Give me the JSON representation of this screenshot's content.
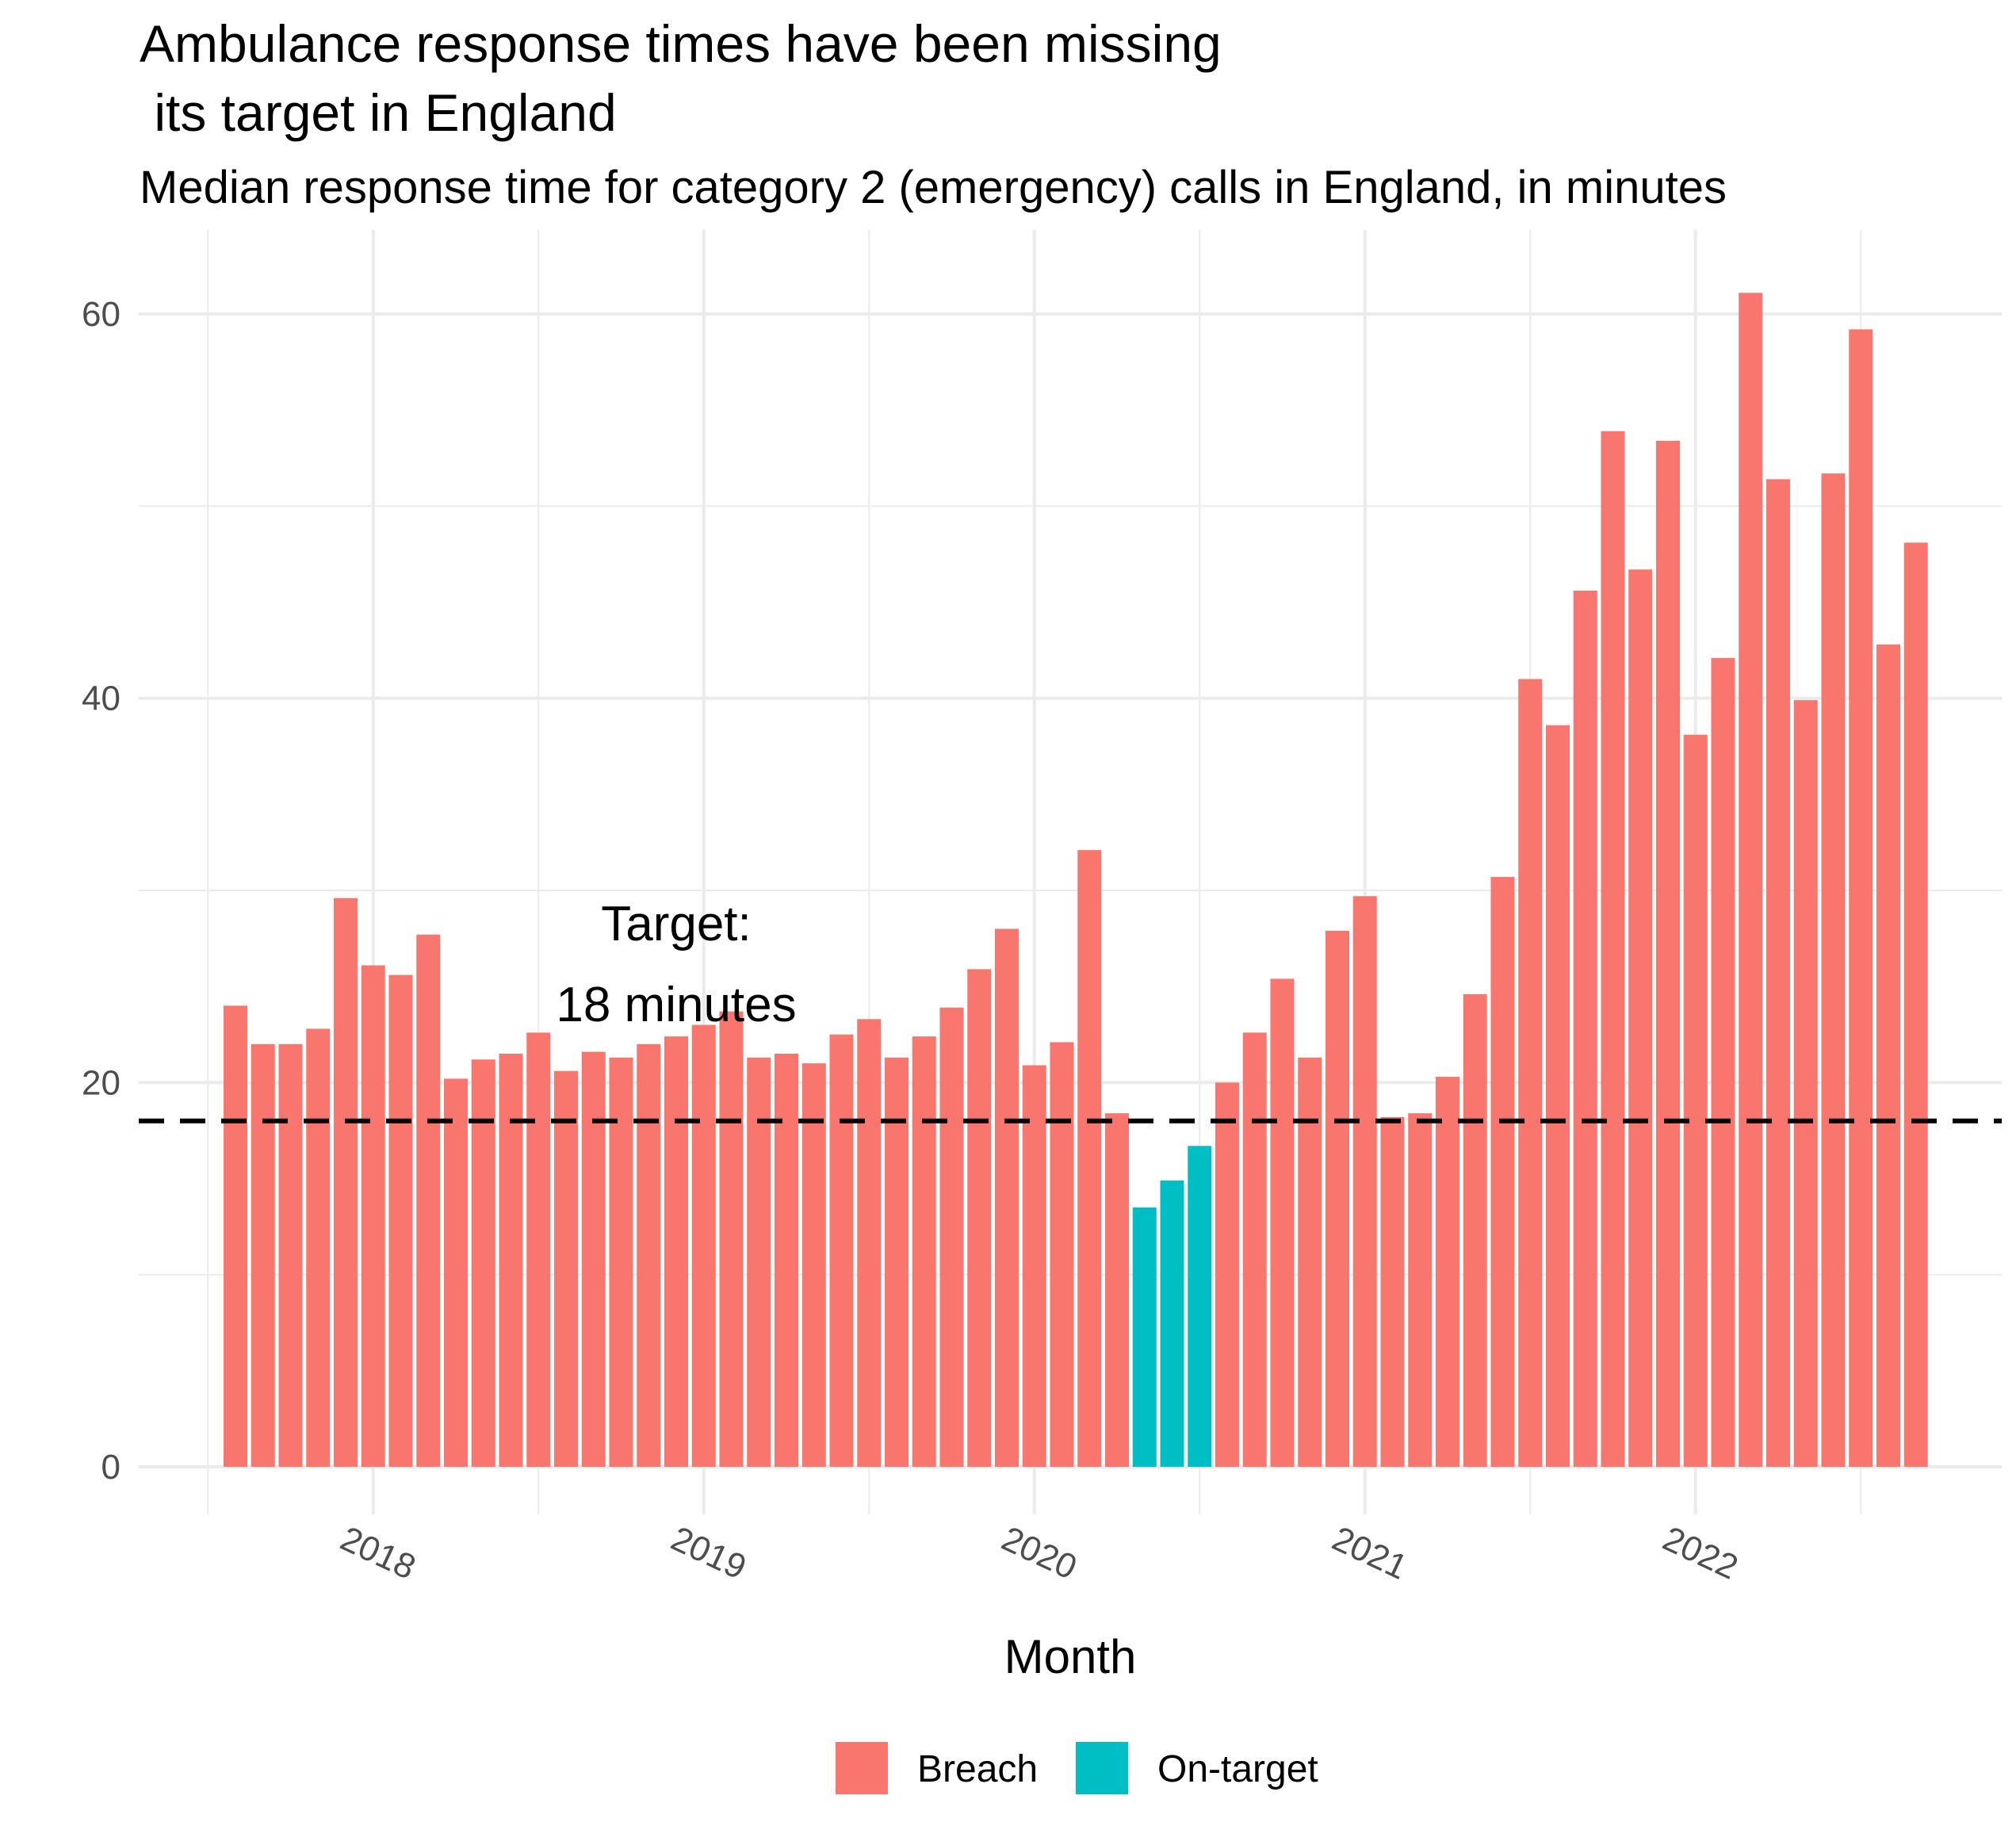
{
  "chart_data": {
    "type": "bar",
    "title_lines": [
      "Ambulance response times have been missing",
      " its target in England"
    ],
    "subtitle": "Median response time for category 2 (emergency) calls in England, in minutes",
    "xlabel": "Month",
    "ylabel": "",
    "ylim": [
      -2,
      64
    ],
    "y_ticks": [
      0,
      20,
      40,
      60
    ],
    "x_tick_labels": [
      "2018",
      "2019",
      "2020",
      "2021",
      "2022"
    ],
    "x_start": "2017-08",
    "grid": true,
    "target": {
      "value": 18,
      "label_lines": [
        "Target:",
        "18 minutes"
      ]
    },
    "legend": {
      "position": "bottom",
      "entries": [
        {
          "name": "Breach",
          "color": "#F8766D"
        },
        {
          "name": "On-target",
          "color": "#00BFC4"
        }
      ]
    },
    "values": [
      24.0,
      22.0,
      22.0,
      22.8,
      29.6,
      26.1,
      25.6,
      27.7,
      20.2,
      21.2,
      21.5,
      22.6,
      20.6,
      21.6,
      21.3,
      22.0,
      22.4,
      23.0,
      23.7,
      21.3,
      21.5,
      21.0,
      22.5,
      23.3,
      21.3,
      22.4,
      23.9,
      25.9,
      28.0,
      20.9,
      22.1,
      32.1,
      18.4,
      13.5,
      14.9,
      16.7,
      20.0,
      22.6,
      25.4,
      21.3,
      27.9,
      29.7,
      18.2,
      18.4,
      20.3,
      24.6,
      30.7,
      41.0,
      38.6,
      45.6,
      53.9,
      46.7,
      53.4,
      38.1,
      42.1,
      61.1,
      51.4,
      39.9,
      51.7,
      59.2,
      42.8,
      48.1
    ],
    "status": [
      "Breach",
      "Breach",
      "Breach",
      "Breach",
      "Breach",
      "Breach",
      "Breach",
      "Breach",
      "Breach",
      "Breach",
      "Breach",
      "Breach",
      "Breach",
      "Breach",
      "Breach",
      "Breach",
      "Breach",
      "Breach",
      "Breach",
      "Breach",
      "Breach",
      "Breach",
      "Breach",
      "Breach",
      "Breach",
      "Breach",
      "Breach",
      "Breach",
      "Breach",
      "Breach",
      "Breach",
      "Breach",
      "Breach",
      "On-target",
      "On-target",
      "On-target",
      "Breach",
      "Breach",
      "Breach",
      "Breach",
      "Breach",
      "Breach",
      "Breach",
      "Breach",
      "Breach",
      "Breach",
      "Breach",
      "Breach",
      "Breach",
      "Breach",
      "Breach",
      "Breach",
      "Breach",
      "Breach",
      "Breach",
      "Breach",
      "Breach",
      "Breach",
      "Breach",
      "Breach",
      "Breach",
      "Breach"
    ],
    "colors": {
      "grid": "#ebebeb",
      "target_line": "#000000"
    }
  }
}
